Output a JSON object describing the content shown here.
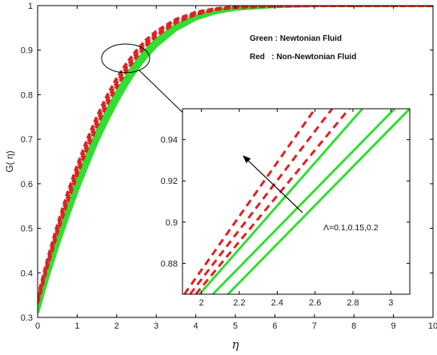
{
  "chart_data": [
    {
      "type": "line",
      "xlabel": "η",
      "ylabel": "G( η)",
      "xlim": [
        0,
        10
      ],
      "ylim": [
        0.3,
        1.0
      ],
      "x_ticks": [
        "0",
        "1",
        "2",
        "3",
        "4",
        "5",
        "6",
        "7",
        "8",
        "9",
        "10"
      ],
      "y_ticks": [
        "0.3",
        "0.4",
        "0.5",
        "0.6",
        "0.7",
        "0.8",
        "0.9",
        "1"
      ],
      "x": [
        0,
        0.25,
        0.5,
        0.75,
        1,
        1.25,
        1.5,
        1.75,
        2,
        2.25,
        2.5,
        2.75,
        3,
        3.5,
        4,
        4.5,
        5,
        6,
        7,
        8,
        9,
        10
      ],
      "series": [
        {
          "color": "#33dd33",
          "dash": false,
          "values": [
            0.31,
            0.388,
            0.458,
            0.522,
            0.584,
            0.64,
            0.693,
            0.74,
            0.783,
            0.822,
            0.856,
            0.885,
            0.909,
            0.946,
            0.97,
            0.984,
            0.992,
            0.998,
            1.0,
            1.0,
            1.0,
            1.0
          ]
        },
        {
          "color": "#33dd33",
          "dash": false,
          "values": [
            0.318,
            0.398,
            0.47,
            0.536,
            0.598,
            0.654,
            0.707,
            0.754,
            0.796,
            0.834,
            0.867,
            0.895,
            0.918,
            0.953,
            0.975,
            0.987,
            0.994,
            0.999,
            1.0,
            1.0,
            1.0,
            1.0
          ]
        },
        {
          "color": "#33dd33",
          "dash": false,
          "values": [
            0.325,
            0.407,
            0.48,
            0.547,
            0.61,
            0.666,
            0.718,
            0.765,
            0.806,
            0.843,
            0.875,
            0.902,
            0.924,
            0.957,
            0.977,
            0.989,
            0.995,
            0.999,
            1.0,
            1.0,
            1.0,
            1.0
          ]
        },
        {
          "color": "#dd2222",
          "dash": true,
          "values": [
            0.332,
            0.416,
            0.49,
            0.558,
            0.621,
            0.678,
            0.73,
            0.777,
            0.818,
            0.854,
            0.885,
            0.911,
            0.932,
            0.962,
            0.98,
            0.991,
            0.996,
            0.999,
            1.0,
            1.0,
            1.0,
            1.0
          ]
        },
        {
          "color": "#dd2222",
          "dash": true,
          "values": [
            0.338,
            0.423,
            0.498,
            0.567,
            0.631,
            0.688,
            0.74,
            0.786,
            0.827,
            0.862,
            0.892,
            0.917,
            0.937,
            0.966,
            0.983,
            0.992,
            0.997,
            1.0,
            1.0,
            1.0,
            1.0,
            1.0
          ]
        },
        {
          "color": "#dd2222",
          "dash": true,
          "values": [
            0.344,
            0.43,
            0.506,
            0.576,
            0.64,
            0.698,
            0.75,
            0.796,
            0.836,
            0.87,
            0.899,
            0.923,
            0.942,
            0.969,
            0.985,
            0.993,
            0.997,
            1.0,
            1.0,
            1.0,
            1.0,
            1.0
          ]
        }
      ]
    },
    {
      "type": "line",
      "xlim": [
        1.9,
        3.1
      ],
      "ylim": [
        0.865,
        0.955
      ],
      "x_ticks": [
        "2",
        "2.2",
        "2.4",
        "2.6",
        "2.8",
        "3"
      ],
      "y_ticks": [
        "0.88",
        "0.9",
        "0.92",
        "0.94"
      ],
      "series": [
        {
          "color": "#33dd33",
          "dash": false,
          "x": [
            2.14,
            3.1
          ],
          "values": [
            0.865,
            0.955
          ]
        },
        {
          "color": "#33dd33",
          "dash": false,
          "x": [
            2.06,
            3.02
          ],
          "values": [
            0.865,
            0.955
          ]
        },
        {
          "color": "#33dd33",
          "dash": false,
          "x": [
            1.99,
            2.85
          ],
          "values": [
            0.865,
            0.955
          ]
        },
        {
          "color": "#dd2222",
          "dash": true,
          "x": [
            1.97,
            2.78
          ],
          "values": [
            0.865,
            0.955
          ]
        },
        {
          "color": "#dd2222",
          "dash": true,
          "x": [
            1.94,
            2.69
          ],
          "values": [
            0.865,
            0.955
          ]
        },
        {
          "color": "#dd2222",
          "dash": true,
          "x": [
            1.91,
            2.6
          ],
          "values": [
            0.865,
            0.955
          ]
        }
      ]
    }
  ],
  "legend": {
    "green": "Green : Newtonian Fluid",
    "red": "Red   : Non-Newtonian Fluid"
  },
  "annotation": "Λ=0.1,0.15,0.2"
}
